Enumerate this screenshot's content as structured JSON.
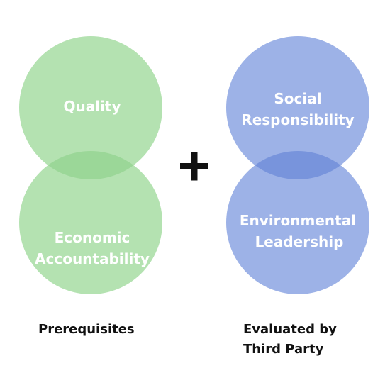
{
  "colors": {
    "green": "#b4e2b1",
    "green_overlap": "#9bd798",
    "blue": "#9db2e7",
    "blue_overlap": "#7894dc",
    "plus": "#111111"
  },
  "left_group": {
    "top_circle": {
      "lines": [
        "Quality"
      ]
    },
    "bottom_circle": {
      "lines": [
        "Economic",
        "Accountability"
      ]
    },
    "caption": "Prerequisites"
  },
  "operator": {
    "symbol": "+"
  },
  "right_group": {
    "top_circle": {
      "lines": [
        "Social",
        "Responsibility"
      ]
    },
    "bottom_circle": {
      "lines": [
        "Environmental",
        "Leadership"
      ]
    },
    "caption_lines": [
      "Evaluated by",
      "Third Party"
    ]
  }
}
